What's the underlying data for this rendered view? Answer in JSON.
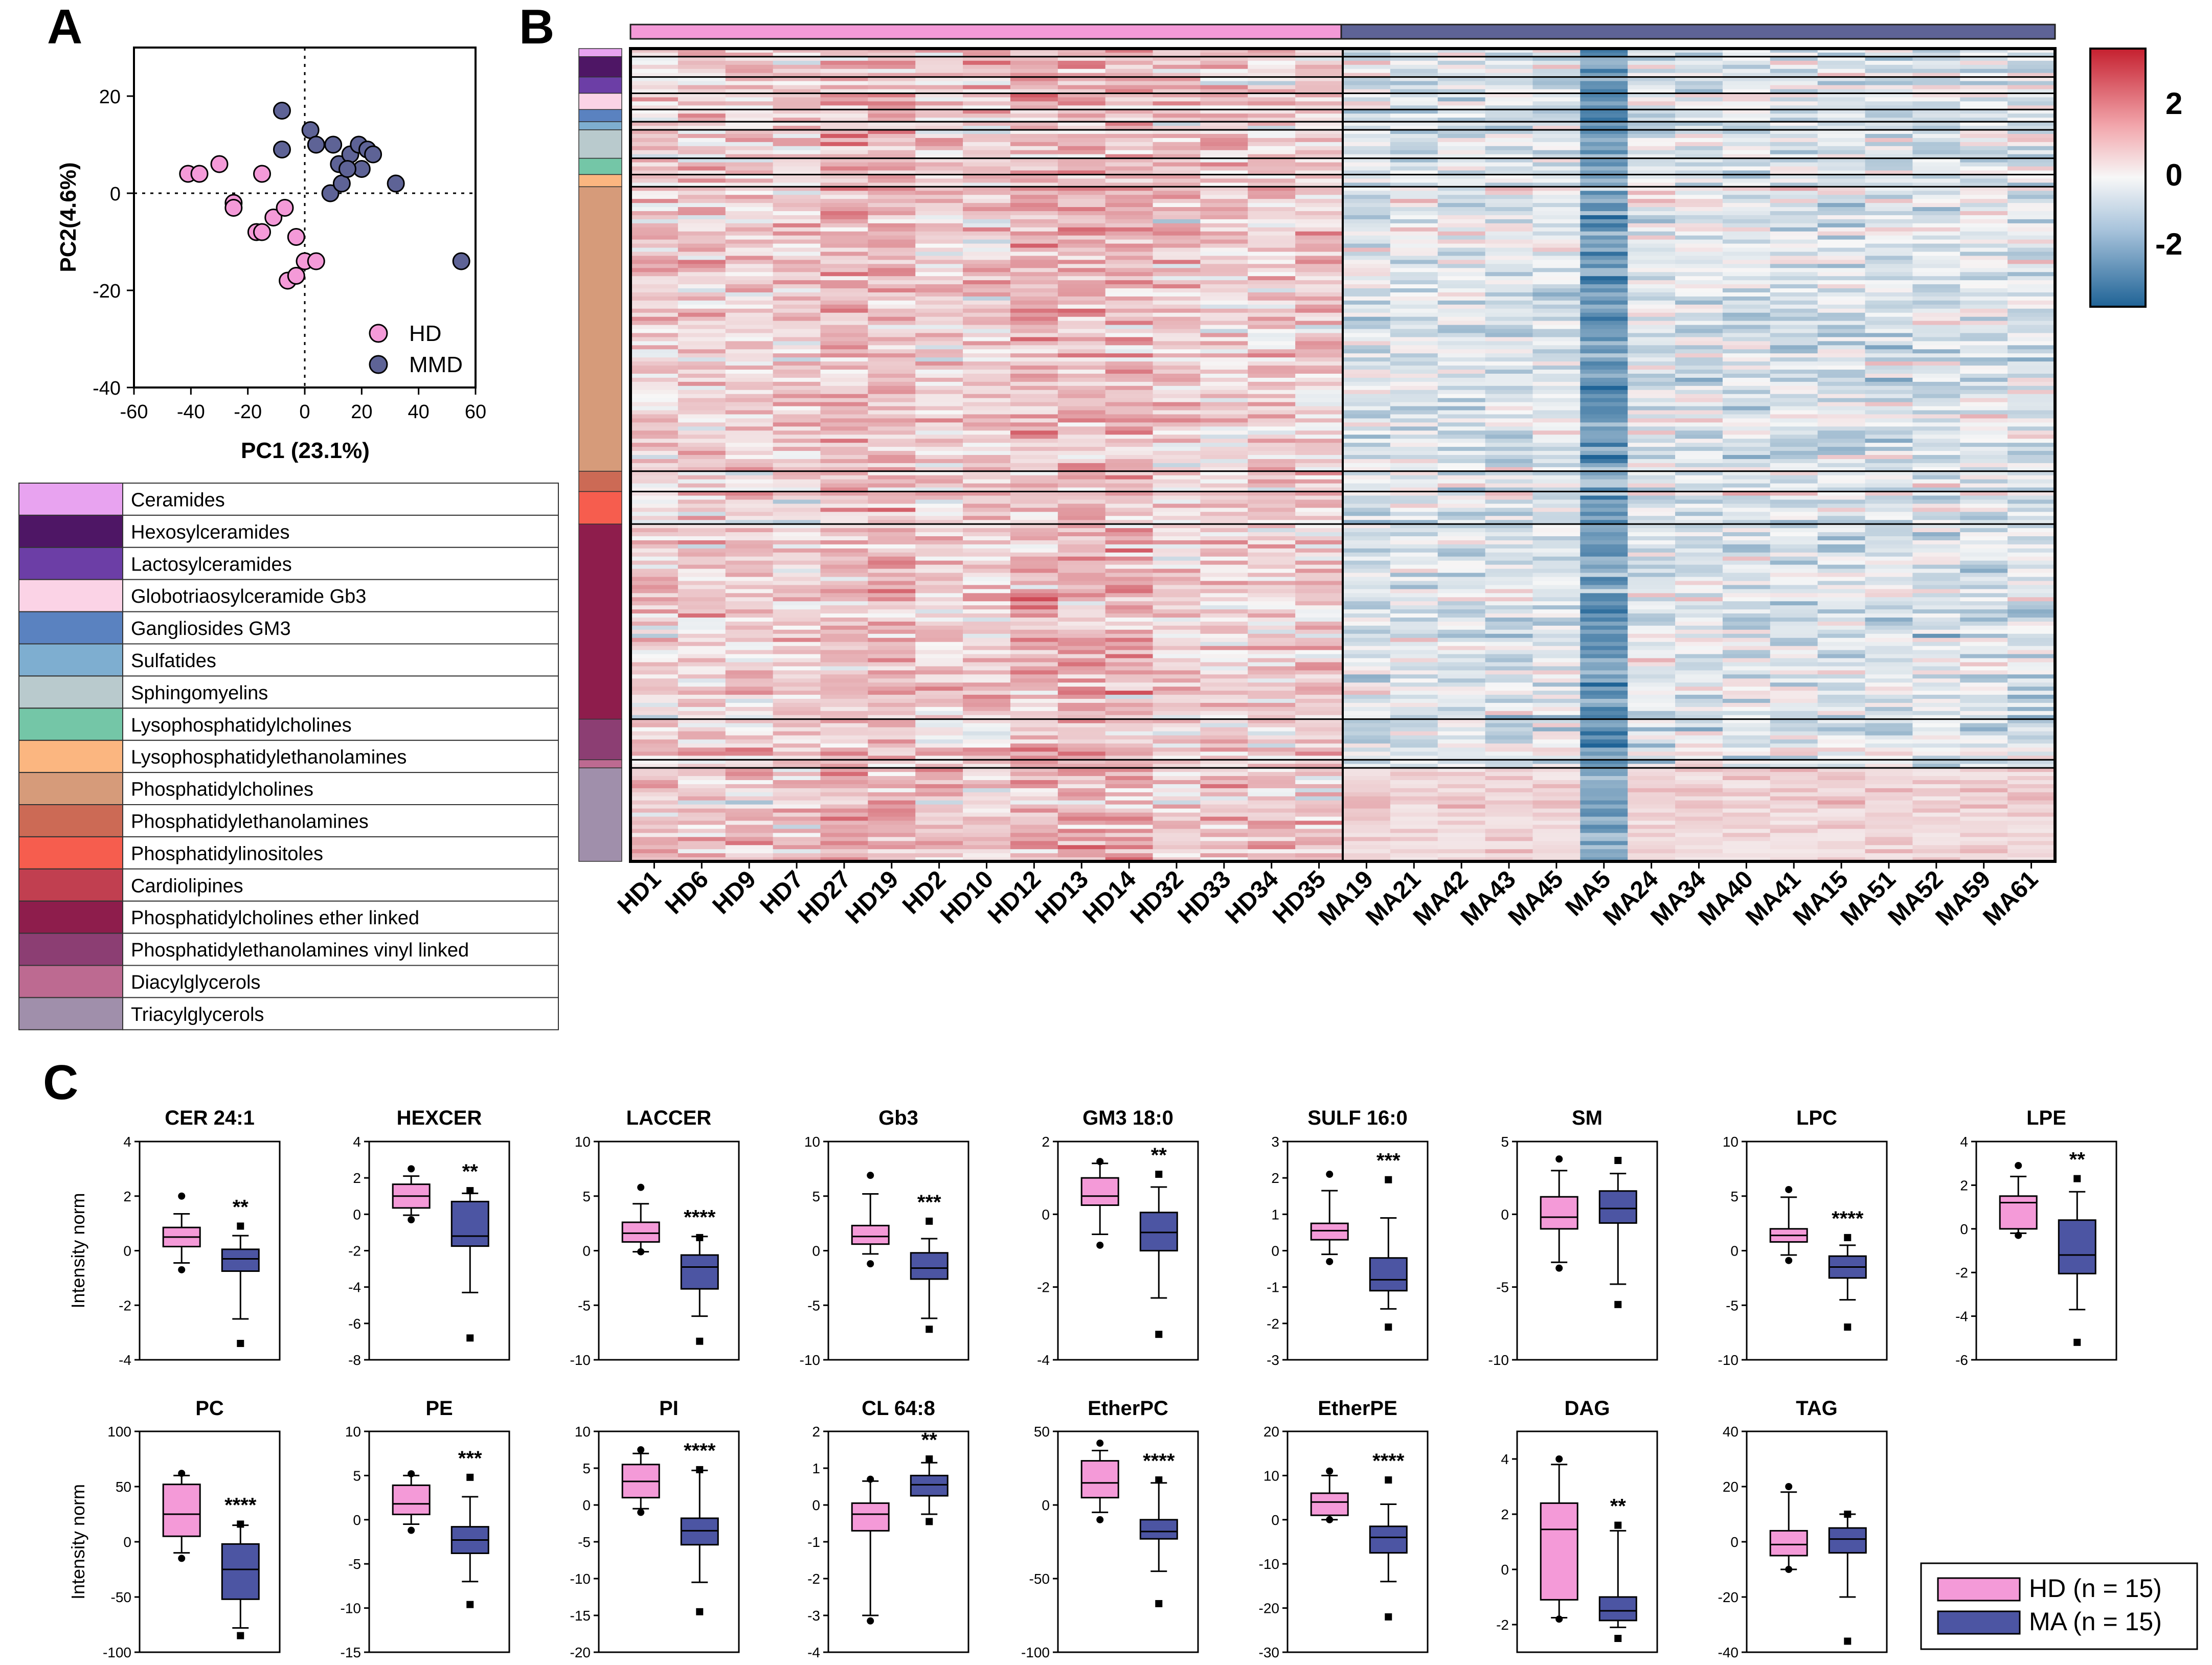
{
  "panels": {
    "a": "A",
    "b": "B",
    "c": "C"
  },
  "colors": {
    "hd": "#f49ad8",
    "mmd": "#5e6396",
    "ma": "#4c55a3",
    "heat_high": "#c5202f",
    "heat_mid": "#f7f7f7",
    "heat_low": "#1f6396"
  },
  "chart_data": [
    {
      "id": "pca",
      "type": "scatter",
      "title": "",
      "xlabel": "PC1 (23.1%)",
      "ylabel": "PC2(4.6%)",
      "xlim": [
        -60,
        60
      ],
      "ylim": [
        -40,
        30
      ],
      "xticks": [
        -60,
        -40,
        -20,
        0,
        20,
        40,
        60
      ],
      "yticks": [
        -40,
        -20,
        0,
        20
      ],
      "legend": [
        "HD",
        "MMD"
      ],
      "series": [
        {
          "name": "HD",
          "points": [
            [
              -41,
              4
            ],
            [
              -37,
              4
            ],
            [
              -30,
              6
            ],
            [
              -25,
              -2
            ],
            [
              -25,
              -3
            ],
            [
              -17,
              -8
            ],
            [
              -15,
              -8
            ],
            [
              -11,
              -5
            ],
            [
              -7,
              -3
            ],
            [
              -6,
              -18
            ],
            [
              -3,
              -17
            ],
            [
              -3,
              -9
            ],
            [
              0,
              -14
            ],
            [
              4,
              -14
            ],
            [
              -15,
              4
            ]
          ]
        },
        {
          "name": "MMD",
          "points": [
            [
              -8,
              17
            ],
            [
              -8,
              9
            ],
            [
              2,
              13
            ],
            [
              4,
              10
            ],
            [
              10,
              10
            ],
            [
              12,
              6
            ],
            [
              16,
              8
            ],
            [
              19,
              10
            ],
            [
              20,
              5
            ],
            [
              22,
              9
            ],
            [
              24,
              8
            ],
            [
              9,
              0
            ],
            [
              13,
              2
            ],
            [
              15,
              5
            ],
            [
              32,
              2
            ],
            [
              55,
              -14
            ]
          ]
        }
      ]
    },
    {
      "id": "heatmap",
      "type": "heatmap",
      "group_labels": [
        "HD",
        "MA"
      ],
      "columns": [
        "HD1",
        "HD6",
        "HD9",
        "HD7",
        "HD27",
        "HD19",
        "HD2",
        "HD10",
        "HD12",
        "HD13",
        "HD14",
        "HD32",
        "HD33",
        "HD34",
        "HD35",
        "MA19",
        "MA21",
        "MA42",
        "MA43",
        "MA45",
        "MA5",
        "MA24",
        "MA34",
        "MA40",
        "MA41",
        "MA15",
        "MA51",
        "MA52",
        "MA59",
        "MA61"
      ],
      "colorbar": {
        "ticks": [
          "2",
          "0",
          "-2"
        ],
        "range": [
          -3,
          3
        ]
      },
      "rows": 200,
      "class_blocks": [
        {
          "class": "Ceramides",
          "rows": 2
        },
        {
          "class": "Hexosylceramides",
          "rows": 5
        },
        {
          "class": "Lactosylceramides",
          "rows": 4
        },
        {
          "class": "Globotriaosylceramide Gb3",
          "rows": 4
        },
        {
          "class": "Gangliosides GM3",
          "rows": 3
        },
        {
          "class": "Sulfatides",
          "rows": 2
        },
        {
          "class": "Sphingomyelins",
          "rows": 7
        },
        {
          "class": "Lysophosphatidylcholines",
          "rows": 4
        },
        {
          "class": "Lysophosphatidylethanolamines",
          "rows": 3
        },
        {
          "class": "Phosphatidylcholines",
          "rows": 70
        },
        {
          "class": "Phosphatidylethanolamines",
          "rows": 5
        },
        {
          "class": "Phosphatidylinositoles",
          "rows": 8
        },
        {
          "class": "Phosphatidylcholines ether linked",
          "rows": 48
        },
        {
          "class": "Phosphatidylethanolamines vinyl linked",
          "rows": 10
        },
        {
          "class": "Diacylglycerols",
          "rows": 2
        },
        {
          "class": "Triacylglycerols",
          "rows": 23
        }
      ]
    },
    {
      "id": "boxplots",
      "type": "box",
      "ylabel": "Intensity norm",
      "legend": [
        "HD (n = 15)",
        "MA (n = 15)"
      ],
      "plots": [
        {
          "title": "CER 24:1",
          "ylim": [
            -4,
            4
          ],
          "yticks": [
            "4",
            "2",
            "0",
            "-2",
            "-4"
          ],
          "sig": "**",
          "hd": {
            "q1": 0.15,
            "med": 0.5,
            "q3": 0.85,
            "wlo": -0.45,
            "whi": 1.35,
            "out": [
              2.0,
              -0.7
            ]
          },
          "ma": {
            "q1": -0.75,
            "med": -0.3,
            "q3": 0.05,
            "wlo": -2.5,
            "whi": 0.55,
            "out": [
              0.9,
              -3.4
            ]
          }
        },
        {
          "title": "HEXCER",
          "ylim": [
            -8,
            4
          ],
          "yticks": [
            "4",
            "2",
            "0",
            "-2",
            "-4",
            "-6",
            "-8"
          ],
          "sig": "**",
          "hd": {
            "q1": 0.35,
            "med": 1.0,
            "q3": 1.65,
            "wlo": -0.05,
            "whi": 2.1,
            "out": [
              2.5,
              -0.3
            ]
          },
          "ma": {
            "q1": -1.75,
            "med": -1.2,
            "q3": 0.7,
            "wlo": -4.3,
            "whi": 1.15,
            "out": [
              1.3,
              -6.8
            ]
          }
        },
        {
          "title": "LACCER",
          "ylim": [
            -10,
            10
          ],
          "yticks": [
            "10",
            "5",
            "0",
            "-5",
            "-10"
          ],
          "sig": "****",
          "hd": {
            "q1": 0.8,
            "med": 1.6,
            "q3": 2.6,
            "wlo": -0.1,
            "whi": 4.3,
            "out": [
              5.8,
              -0.1
            ]
          },
          "ma": {
            "q1": -3.5,
            "med": -1.5,
            "q3": -0.4,
            "wlo": -6.0,
            "whi": 1.3,
            "out": [
              1.2,
              -8.3
            ]
          }
        },
        {
          "title": "Gb3",
          "ylim": [
            -10,
            10
          ],
          "yticks": [
            "10",
            "5",
            "0",
            "-5",
            "-10"
          ],
          "sig": "***",
          "hd": {
            "q1": 0.6,
            "med": 1.3,
            "q3": 2.3,
            "wlo": -0.3,
            "whi": 5.2,
            "out": [
              6.9,
              -1.2
            ]
          },
          "ma": {
            "q1": -2.6,
            "med": -1.6,
            "q3": -0.2,
            "wlo": -6.2,
            "whi": 1.1,
            "out": [
              2.7,
              -7.2
            ]
          }
        },
        {
          "title": "GM3 18:0",
          "ylim": [
            -4,
            2
          ],
          "yticks": [
            "2",
            "0",
            "-2",
            "-4"
          ],
          "sig": "**",
          "hd": {
            "q1": 0.25,
            "med": 0.5,
            "q3": 1.0,
            "wlo": -0.55,
            "whi": 1.4,
            "out": [
              1.45,
              -0.85
            ]
          },
          "ma": {
            "q1": -1.0,
            "med": -0.5,
            "q3": 0.05,
            "wlo": -2.3,
            "whi": 0.75,
            "out": [
              1.1,
              -3.3
            ]
          }
        },
        {
          "title": "SULF 16:0",
          "ylim": [
            -3,
            3
          ],
          "yticks": [
            "3",
            "2",
            "1",
            "0",
            "-1",
            "-2",
            "-3"
          ],
          "sig": "***",
          "hd": {
            "q1": 0.3,
            "med": 0.55,
            "q3": 0.75,
            "wlo": -0.1,
            "whi": 1.65,
            "out": [
              2.1,
              -0.3
            ]
          },
          "ma": {
            "q1": -1.1,
            "med": -0.8,
            "q3": -0.2,
            "wlo": -1.6,
            "whi": 0.9,
            "out": [
              1.95,
              -2.1
            ]
          }
        },
        {
          "title": "SM",
          "ylim": [
            -10,
            5
          ],
          "yticks": [
            "5",
            "0",
            "-5",
            "-10"
          ],
          "sig": "",
          "hd": {
            "q1": -1.0,
            "med": -0.2,
            "q3": 1.2,
            "wlo": -3.3,
            "whi": 3.0,
            "out": [
              3.8,
              -3.7
            ]
          },
          "ma": {
            "q1": -0.6,
            "med": 0.4,
            "q3": 1.6,
            "wlo": -4.8,
            "whi": 2.8,
            "out": [
              3.7,
              -6.2
            ]
          }
        },
        {
          "title": "LPC",
          "ylim": [
            -10,
            10
          ],
          "yticks": [
            "10",
            "5",
            "0",
            "-5",
            "-10"
          ],
          "sig": "****",
          "hd": {
            "q1": 0.8,
            "med": 1.4,
            "q3": 2.0,
            "wlo": -0.4,
            "whi": 4.9,
            "out": [
              5.6,
              -0.9
            ]
          },
          "ma": {
            "q1": -2.5,
            "med": -1.5,
            "q3": -0.5,
            "wlo": -4.5,
            "whi": 0.5,
            "out": [
              1.2,
              -7.0
            ]
          }
        },
        {
          "title": "LPE",
          "ylim": [
            -6,
            4
          ],
          "yticks": [
            "4",
            "2",
            "0",
            "-2",
            "-4",
            "-6"
          ],
          "sig": "**",
          "hd": {
            "q1": 0.0,
            "med": 1.2,
            "q3": 1.5,
            "wlo": -0.2,
            "whi": 2.4,
            "out": [
              2.9,
              -0.3
            ]
          },
          "ma": {
            "q1": -2.05,
            "med": -1.2,
            "q3": 0.4,
            "wlo": -3.7,
            "whi": 1.7,
            "out": [
              2.3,
              -5.2
            ]
          }
        },
        {
          "title": "PC",
          "ylim": [
            -100,
            100
          ],
          "yticks": [
            "100",
            "50",
            "0",
            "-50",
            "-100"
          ],
          "sig": "****",
          "hd": {
            "q1": 5,
            "med": 25,
            "q3": 52,
            "wlo": -10,
            "whi": 60,
            "out": [
              62,
              -15
            ]
          },
          "ma": {
            "q1": -52,
            "med": -25,
            "q3": -2,
            "wlo": -78,
            "whi": 15,
            "out": [
              16,
              -85
            ]
          }
        },
        {
          "title": "PE",
          "ylim": [
            -15,
            10
          ],
          "yticks": [
            "10",
            "5",
            "0",
            "-5",
            "-10",
            "-15"
          ],
          "sig": "***",
          "hd": {
            "q1": 0.6,
            "med": 1.8,
            "q3": 3.9,
            "wlo": -0.5,
            "whi": 5.0,
            "out": [
              5.2,
              -1.2
            ]
          },
          "ma": {
            "q1": -3.8,
            "med": -2.3,
            "q3": -0.8,
            "wlo": -7.0,
            "whi": 2.6,
            "out": [
              4.8,
              -9.6
            ]
          }
        },
        {
          "title": "PI",
          "ylim": [
            -20,
            10
          ],
          "yticks": [
            "10",
            "5",
            "0",
            "-5",
            "-10",
            "-15",
            "-20"
          ],
          "sig": "****",
          "hd": {
            "q1": 1.0,
            "med": 3.2,
            "q3": 5.5,
            "wlo": -0.5,
            "whi": 7.0,
            "out": [
              7.5,
              -1.0
            ]
          },
          "ma": {
            "q1": -5.4,
            "med": -3.5,
            "q3": -1.8,
            "wlo": -10.5,
            "whi": 4.7,
            "out": [
              4.8,
              -14.5
            ]
          }
        },
        {
          "title": "CL 64:8",
          "ylim": [
            -4,
            2
          ],
          "yticks": [
            "2",
            "1",
            "0",
            "-1",
            "-2",
            "-3",
            "-4"
          ],
          "sig": "**",
          "hd": {
            "q1": -0.7,
            "med": -0.25,
            "q3": 0.05,
            "wlo": -3.0,
            "whi": 0.65,
            "out": [
              0.7,
              -3.15
            ]
          },
          "ma": {
            "q1": 0.25,
            "med": 0.55,
            "q3": 0.8,
            "wlo": -0.25,
            "whi": 1.15,
            "out": [
              1.25,
              -0.45
            ]
          }
        },
        {
          "title": "EtherPC",
          "ylim": [
            -100,
            50
          ],
          "yticks": [
            "50",
            "0",
            "-50",
            "-100"
          ],
          "sig": "****",
          "hd": {
            "q1": 5,
            "med": 15,
            "q3": 30,
            "wlo": -5,
            "whi": 37,
            "out": [
              42,
              -10
            ]
          },
          "ma": {
            "q1": -23,
            "med": -18,
            "q3": -10,
            "wlo": -45,
            "whi": 15,
            "out": [
              17,
              -67
            ]
          }
        },
        {
          "title": "EtherPE",
          "ylim": [
            -30,
            20
          ],
          "yticks": [
            "20",
            "10",
            "0",
            "-10",
            "-20",
            "-30"
          ],
          "sig": "****",
          "hd": {
            "q1": 1,
            "med": 4,
            "q3": 6,
            "wlo": 0,
            "whi": 10,
            "out": [
              11,
              0
            ]
          },
          "ma": {
            "q1": -7.5,
            "med": -4,
            "q3": -1.5,
            "wlo": -14,
            "whi": 3.5,
            "out": [
              9,
              -22
            ]
          }
        },
        {
          "title": "DAG",
          "ylim": [
            -3,
            5
          ],
          "yticks": [
            "4",
            "2",
            "0",
            "-2"
          ],
          "sig": "**",
          "hd": {
            "q1": -1.1,
            "med": 1.45,
            "q3": 2.4,
            "wlo": -1.75,
            "whi": 3.8,
            "out": [
              4.0,
              -1.8
            ]
          },
          "ma": {
            "q1": -1.85,
            "med": -1.5,
            "q3": -1.0,
            "wlo": -2.1,
            "whi": 1.4,
            "out": [
              1.6,
              -2.5
            ]
          }
        },
        {
          "title": "TAG",
          "ylim": [
            -40,
            40
          ],
          "yticks": [
            "40",
            "20",
            "0",
            "-20",
            "-40"
          ],
          "sig": "",
          "hd": {
            "q1": -5,
            "med": -1,
            "q3": 4,
            "wlo": -10,
            "whi": 18,
            "out": [
              20,
              -10
            ]
          },
          "ma": {
            "q1": -4,
            "med": 1,
            "q3": 5,
            "wlo": -20,
            "whi": 10,
            "out": [
              10,
              -36
            ]
          }
        }
      ]
    }
  ]
}
